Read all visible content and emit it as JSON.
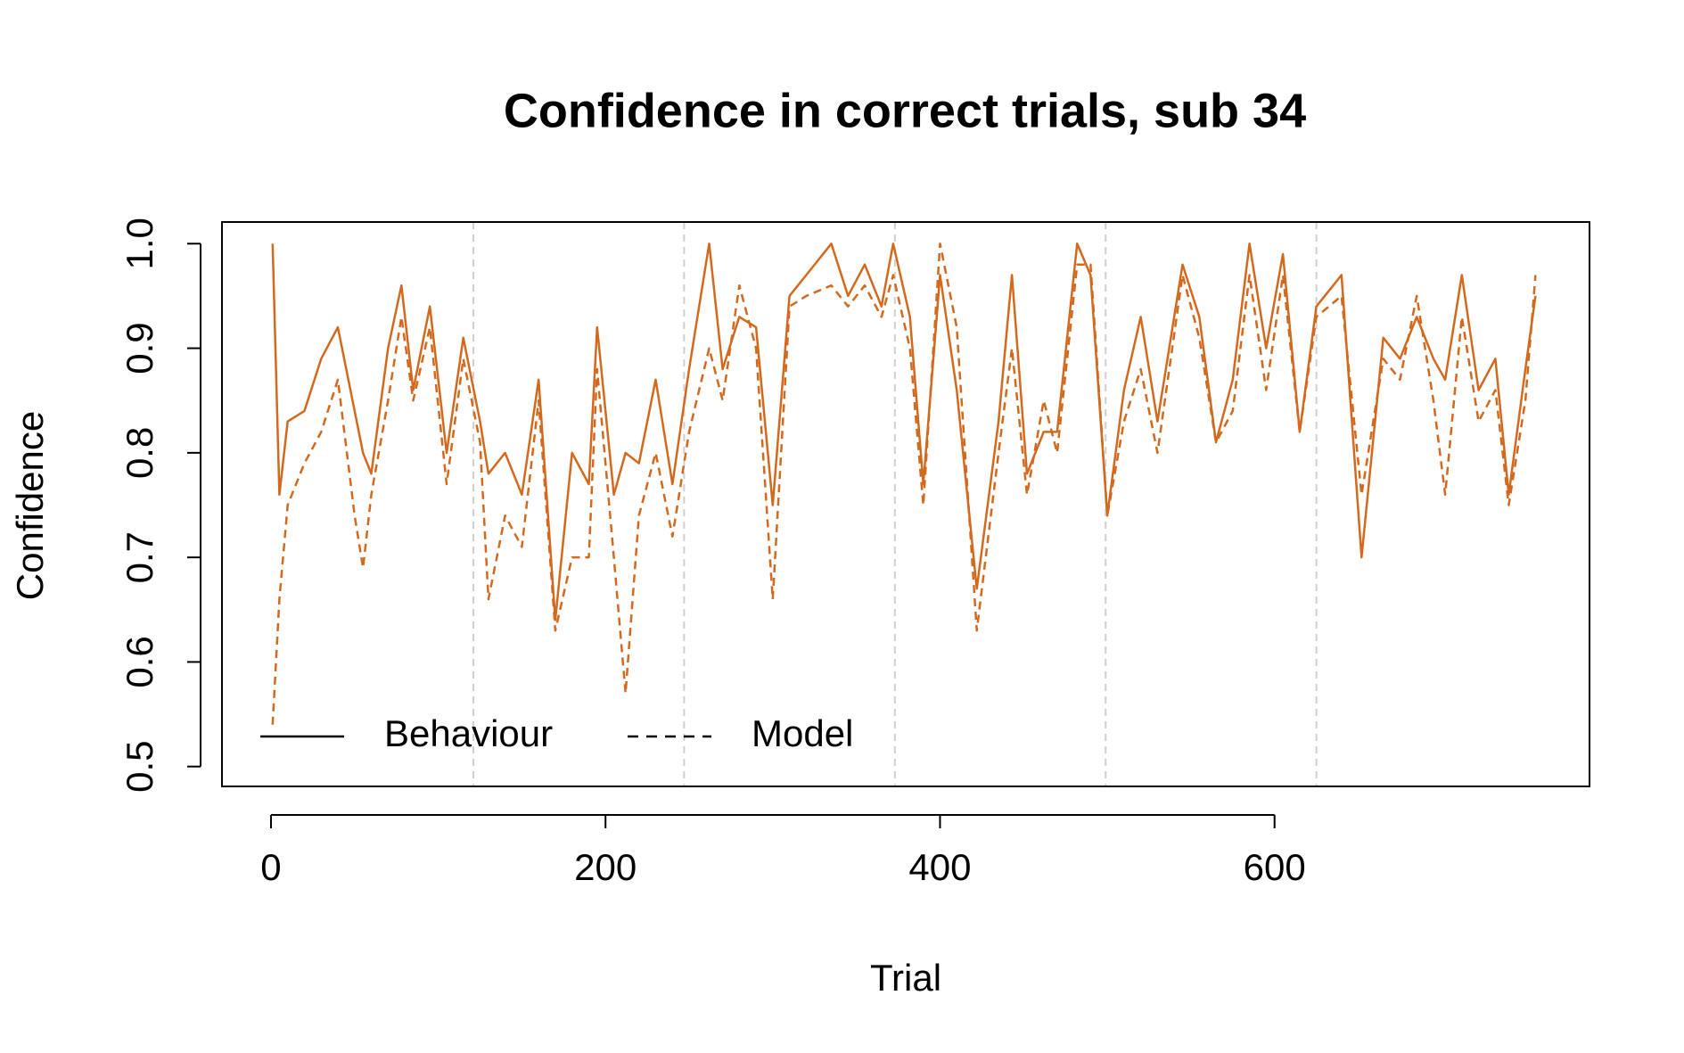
{
  "chart_data": {
    "type": "line",
    "title": "Confidence in correct trials, sub 34",
    "xlabel": "Trial",
    "ylabel": "Confidence",
    "x": [
      1,
      5,
      10,
      20,
      30,
      40,
      50,
      55,
      60,
      70,
      78,
      85,
      95,
      105,
      115,
      125,
      130,
      140,
      150,
      160,
      170,
      180,
      190,
      195,
      205,
      212,
      220,
      230,
      240,
      250,
      262,
      270,
      280,
      290,
      300,
      310,
      320,
      335,
      345,
      355,
      365,
      372,
      382,
      390,
      400,
      410,
      422,
      435,
      443,
      452,
      462,
      470,
      482,
      490,
      500,
      510,
      520,
      530,
      545,
      555,
      565,
      575,
      585,
      595,
      605,
      615,
      625,
      640,
      652,
      665,
      675,
      685,
      695,
      702,
      712,
      722,
      732,
      740,
      750,
      756
    ],
    "series": [
      {
        "name": "Behaviour",
        "color": "#d2691e",
        "dash": false,
        "values": [
          1.0,
          0.76,
          0.83,
          0.84,
          0.89,
          0.92,
          0.84,
          0.8,
          0.78,
          0.9,
          0.96,
          0.86,
          0.94,
          0.8,
          0.91,
          0.83,
          0.78,
          0.8,
          0.76,
          0.87,
          0.64,
          0.8,
          0.77,
          0.92,
          0.76,
          0.8,
          0.79,
          0.87,
          0.77,
          0.88,
          1.0,
          0.88,
          0.93,
          0.92,
          0.75,
          0.95,
          0.97,
          1.0,
          0.95,
          0.98,
          0.94,
          1.0,
          0.93,
          0.77,
          0.97,
          0.86,
          0.67,
          0.83,
          0.97,
          0.78,
          0.82,
          0.82,
          1.0,
          0.97,
          0.74,
          0.86,
          0.93,
          0.83,
          0.98,
          0.93,
          0.81,
          0.87,
          1.0,
          0.9,
          0.99,
          0.82,
          0.94,
          0.97,
          0.7,
          0.91,
          0.89,
          0.93,
          0.89,
          0.87,
          0.97,
          0.86,
          0.89,
          0.76,
          0.88,
          0.95
        ]
      },
      {
        "name": "Model",
        "color": "#d2691e",
        "dash": true,
        "values": [
          0.54,
          0.66,
          0.75,
          0.79,
          0.82,
          0.87,
          0.74,
          0.69,
          0.76,
          0.85,
          0.93,
          0.85,
          0.92,
          0.77,
          0.89,
          0.81,
          0.66,
          0.74,
          0.71,
          0.85,
          0.63,
          0.7,
          0.7,
          0.88,
          0.7,
          0.57,
          0.74,
          0.8,
          0.72,
          0.82,
          0.9,
          0.85,
          0.96,
          0.9,
          0.66,
          0.94,
          0.95,
          0.96,
          0.94,
          0.96,
          0.93,
          0.97,
          0.9,
          0.75,
          1.0,
          0.92,
          0.63,
          0.8,
          0.9,
          0.76,
          0.85,
          0.8,
          0.98,
          0.98,
          0.74,
          0.83,
          0.88,
          0.8,
          0.97,
          0.91,
          0.81,
          0.84,
          0.97,
          0.86,
          0.97,
          0.82,
          0.93,
          0.95,
          0.76,
          0.89,
          0.87,
          0.95,
          0.85,
          0.76,
          0.93,
          0.83,
          0.86,
          0.75,
          0.85,
          0.97
        ]
      }
    ],
    "vlines": [
      121,
      247,
      373,
      499,
      625
    ],
    "xlim": [
      -29.3,
      788.3
    ],
    "xticks": [
      0,
      200,
      400,
      600
    ],
    "ylim": [
      0.481,
      1.0207
    ],
    "yticks": [
      {
        "value": 0.5,
        "label": "0.5"
      },
      {
        "value": 0.6,
        "label": "0.6"
      },
      {
        "value": 0.7,
        "label": "0.7"
      },
      {
        "value": 0.8,
        "label": "0.8"
      },
      {
        "value": 0.9,
        "label": "0.9"
      },
      {
        "value": 1.0,
        "label": "1.0"
      }
    ],
    "legend": "bottomleft"
  }
}
